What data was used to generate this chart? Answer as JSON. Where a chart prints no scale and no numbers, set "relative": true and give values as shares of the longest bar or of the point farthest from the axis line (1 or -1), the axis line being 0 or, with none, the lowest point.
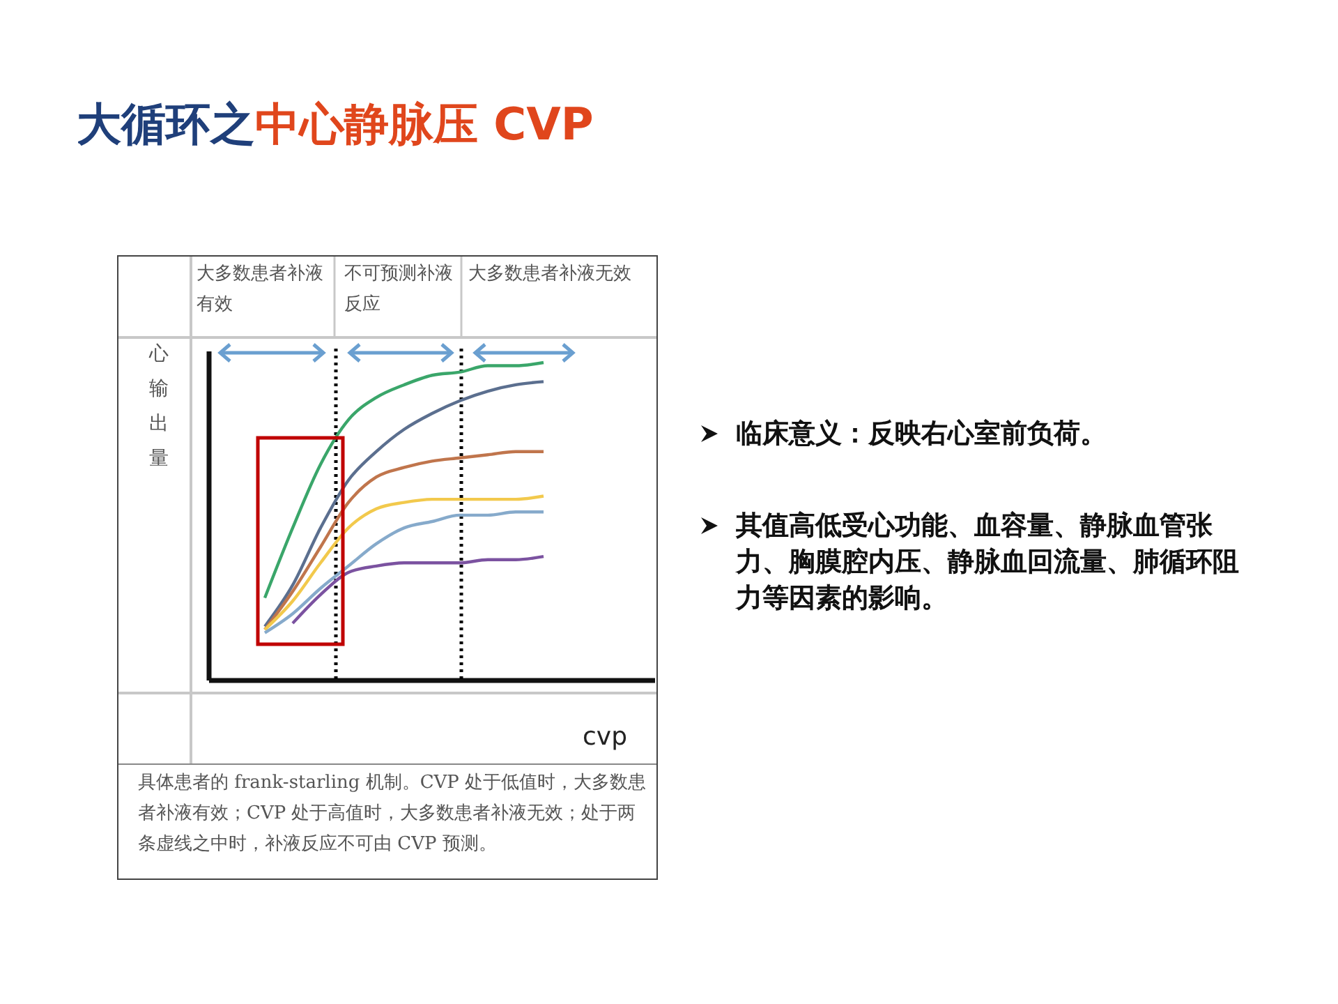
{
  "chart_data": {
    "type": "line",
    "title": "大循环之中心静脉压 CVP",
    "xlabel": "cvp",
    "ylabel": "心输出量",
    "relative": true,
    "categories": [
      null,
      null,
      null,
      null,
      null,
      null,
      null,
      null,
      null,
      null,
      null,
      null,
      null,
      null,
      null,
      null,
      null
    ],
    "series": [
      {
        "color": "#3aa66a",
        "values": [
          null,
          null,
          0.26,
          0.48,
          0.68,
          0.82,
          0.89,
          0.93,
          0.96,
          0.97,
          0.99,
          0.99,
          1.0,
          null,
          null,
          null,
          null
        ]
      },
      {
        "color": "#5b6f8f",
        "values": [
          null,
          null,
          0.17,
          0.3,
          0.48,
          0.63,
          0.72,
          0.79,
          0.84,
          0.88,
          0.91,
          0.93,
          0.94,
          null,
          null,
          null,
          null
        ]
      },
      {
        "color": "#c0754c",
        "values": [
          null,
          null,
          0.16,
          0.28,
          0.42,
          0.56,
          0.64,
          0.67,
          0.69,
          0.7,
          0.71,
          0.72,
          0.72,
          null,
          null,
          null,
          null
        ]
      },
      {
        "color": "#f2c94c",
        "values": [
          null,
          null,
          0.16,
          0.25,
          0.37,
          0.48,
          0.54,
          0.56,
          0.57,
          0.57,
          0.57,
          0.57,
          0.58,
          null,
          null,
          null,
          null
        ]
      },
      {
        "color": "#86aacb",
        "values": [
          null,
          null,
          0.15,
          0.21,
          0.29,
          0.36,
          0.43,
          0.48,
          0.5,
          0.52,
          0.52,
          0.53,
          0.53,
          null,
          null,
          null,
          null
        ]
      },
      {
        "color": "#7b52a0",
        "values": [
          null,
          null,
          null,
          0.18,
          0.27,
          0.34,
          0.36,
          0.37,
          0.37,
          0.37,
          0.38,
          0.38,
          0.39,
          null,
          null,
          null,
          null
        ]
      }
    ],
    "annotations": [
      "大多数患者补液有效",
      "不可预测补液反应",
      "大多数患者补液无效",
      "具体患者的 frank-starling 机制。CVP 处于低值时，大多数患者补液有效；CVP 处于高值时，大多数患者补液无效；处于两条虚线之中时，补液反应不可由 CVP 预测。",
      "临床意义：反映右心室前负荷。",
      "其值高低受心功能、血容量、静脉血管张力、胸膜腔内压、静脉血回流量、肺循环阻力等因素的影响。"
    ]
  }
}
